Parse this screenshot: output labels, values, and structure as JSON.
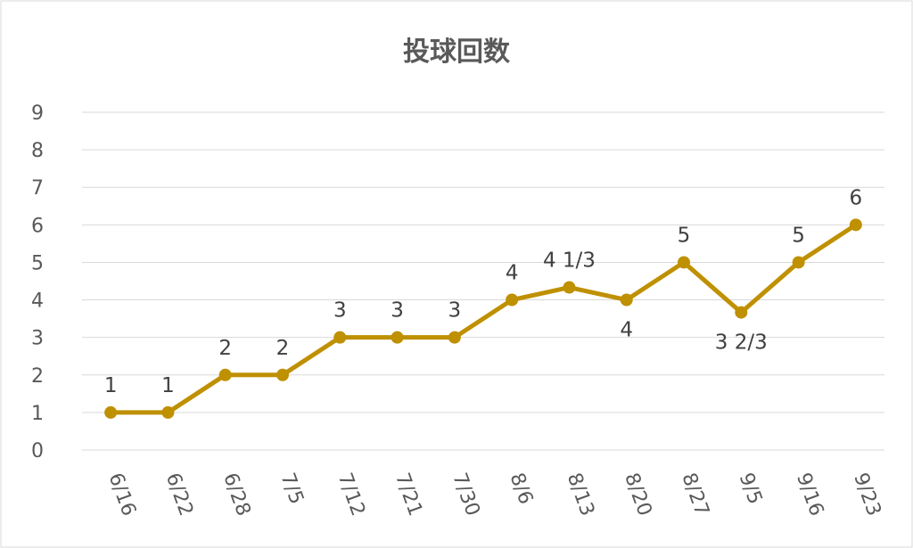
{
  "chart_data": {
    "type": "line",
    "title": "投球回数",
    "xlabel": "",
    "ylabel": "",
    "ylim": [
      0,
      9
    ],
    "yticks": [
      "0",
      "1",
      "2",
      "3",
      "4",
      "5",
      "6",
      "7",
      "8",
      "9"
    ],
    "grid": true,
    "legend": "none",
    "categories": [
      "6/16",
      "6/22",
      "6/28",
      "7/5",
      "7/12",
      "7/21",
      "7/30",
      "8/6",
      "8/13",
      "8/20",
      "8/27",
      "9/5",
      "9/16",
      "9/23"
    ],
    "series": [
      {
        "color": "#BF9000",
        "values": [
          1,
          1,
          2,
          2,
          3,
          3,
          3,
          4,
          4.333,
          4,
          5,
          3.667,
          5,
          6
        ],
        "labels": [
          "1",
          "1",
          "2",
          "2",
          "3",
          "3",
          "3",
          "4",
          "4 1/3",
          "4",
          "5",
          "3 2/3",
          "5",
          "6"
        ]
      }
    ]
  }
}
